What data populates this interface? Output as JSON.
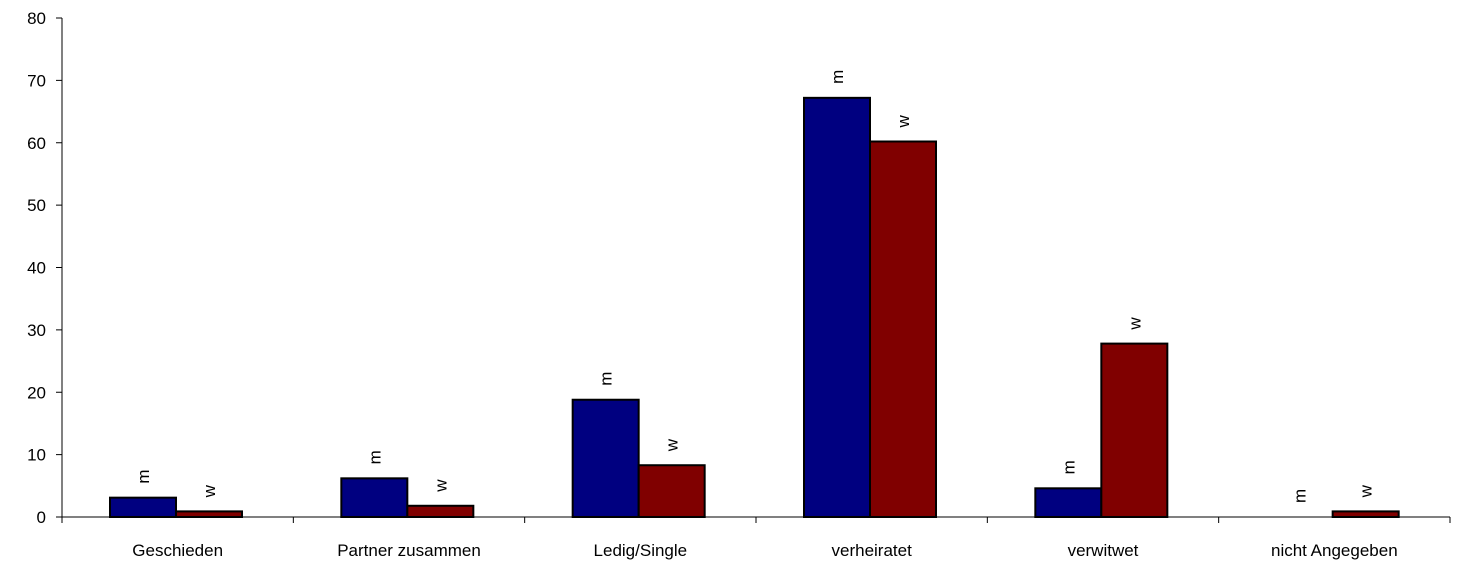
{
  "chart_data": {
    "type": "bar",
    "categories": [
      "Geschieden",
      "Partner zusammen",
      "Ledig/Single",
      "verheiratet",
      "verwitwet",
      "nicht Angegeben"
    ],
    "series": [
      {
        "label": "m",
        "color": "#000080",
        "values": [
          3.1,
          6.2,
          18.8,
          67.2,
          4.6,
          0
        ]
      },
      {
        "label": "w",
        "color": "#800000",
        "values": [
          0.9,
          1.8,
          8.3,
          60.2,
          27.8,
          0.9
        ]
      }
    ],
    "ylim": [
      0,
      80
    ],
    "yticks": [
      0,
      10,
      20,
      30,
      40,
      50,
      60,
      70,
      80
    ],
    "grid": false,
    "legend": "none"
  }
}
